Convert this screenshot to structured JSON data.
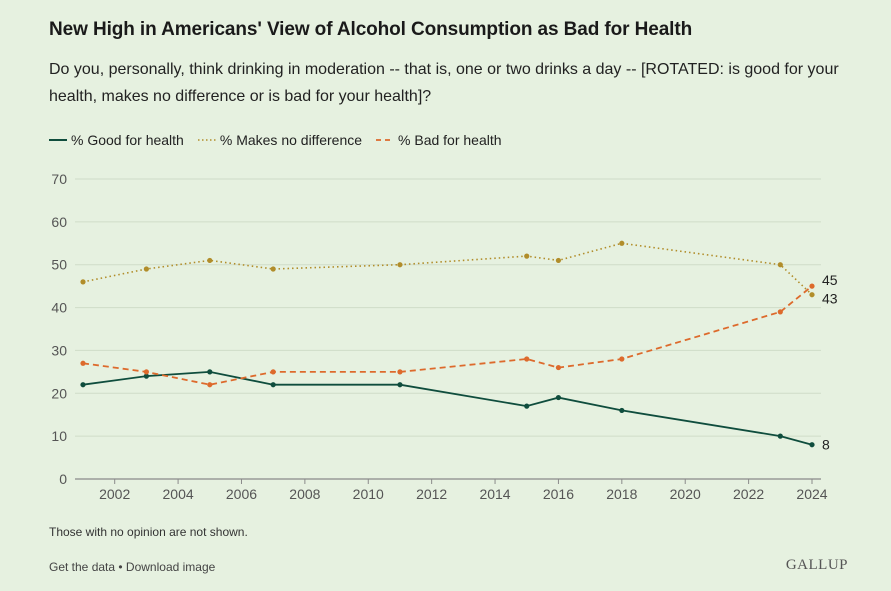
{
  "header": {
    "title": "New High in Americans' View of Alcohol Consumption as Bad for Health",
    "subtitle": "Do you, personally, think drinking in moderation -- that is, one or two drinks a day -- [ROTATED: is good for your health, makes no difference or is bad for your health]?"
  },
  "legend": [
    {
      "label": "% Good for health",
      "color": "#0f4d3d",
      "style": "solid"
    },
    {
      "label": "% Makes no difference",
      "color": "#b18d2a",
      "style": "dotted"
    },
    {
      "label": "% Bad for health",
      "color": "#dd6a2c",
      "style": "dashed"
    }
  ],
  "chart_data": {
    "type": "line",
    "xlim": [
      2001,
      2024
    ],
    "ylim": [
      0,
      70
    ],
    "x_ticks": [
      2002,
      2004,
      2006,
      2008,
      2010,
      2012,
      2014,
      2016,
      2018,
      2020,
      2022,
      2024
    ],
    "y_ticks": [
      0,
      10,
      20,
      30,
      40,
      50,
      60,
      70
    ],
    "grid": "horizontal",
    "legend_position": "top-left",
    "x": [
      2001,
      2003,
      2005,
      2007,
      2011,
      2015,
      2016,
      2018,
      2023,
      2024
    ],
    "series": [
      {
        "name": "% Good for health",
        "color": "#0f4d3d",
        "style": "solid",
        "values": [
          22,
          24,
          25,
          22,
          22,
          17,
          19,
          16,
          10,
          8
        ],
        "end_label": "8"
      },
      {
        "name": "% Makes no difference",
        "color": "#b18d2a",
        "style": "dotted",
        "values": [
          46,
          49,
          51,
          49,
          50,
          52,
          51,
          55,
          50,
          43
        ],
        "end_label": "43"
      },
      {
        "name": "% Bad for health",
        "color": "#dd6a2c",
        "style": "dashed",
        "values": [
          27,
          25,
          22,
          25,
          25,
          28,
          26,
          28,
          39,
          45
        ],
        "end_label": "45"
      }
    ]
  },
  "note": "Those with no opinion are not shown.",
  "footer": {
    "get_data": "Get the data",
    "separator": " • ",
    "download": "Download image",
    "brand": "GALLUP"
  }
}
